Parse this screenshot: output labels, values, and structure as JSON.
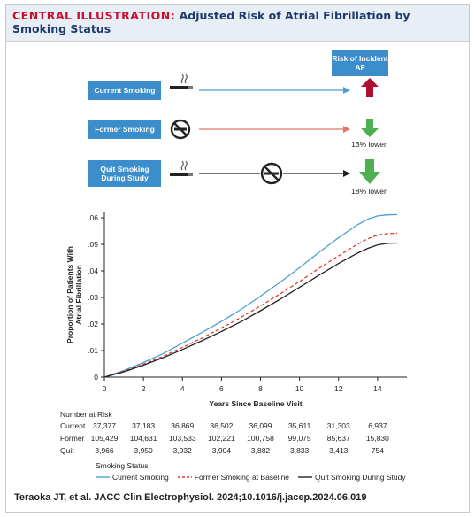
{
  "header": {
    "title_lead": "CENTRAL ILLUSTRATION:",
    "title_rest": "Adjusted Risk of Atrial Fibrillation by Smoking Status"
  },
  "schematic": {
    "risk_box_label": "Risk of Incident AF",
    "rows": [
      {
        "label": "Current Smoking",
        "outcome": "",
        "arrow": "up"
      },
      {
        "label": "Former Smoking",
        "outcome": "13% lower",
        "arrow": "down"
      },
      {
        "label": "Quit Smoking During Study",
        "outcome": "18% lower",
        "arrow": "down"
      }
    ],
    "icons": [
      "cigarette-icon",
      "no-smoking-icon",
      "cigarette-icon",
      "no-smoking-icon"
    ]
  },
  "chart_data": {
    "type": "line",
    "xlabel": "Years Since Baseline Visit",
    "ylabel": "Proportion of Patients With Atrial Fibrillation",
    "xlim": [
      0,
      15.5
    ],
    "ylim": [
      0,
      0.062
    ],
    "xticks": [
      0,
      2,
      4,
      6,
      8,
      10,
      12,
      14
    ],
    "xtick_labels": [
      "0",
      "2",
      "4",
      "6",
      "8",
      "10",
      "12",
      "14"
    ],
    "yticks": [
      0,
      0.01,
      0.02,
      0.03,
      0.04,
      0.05,
      0.06
    ],
    "ytick_labels": [
      "0",
      ".01",
      ".02",
      ".03",
      ".04",
      ".05",
      ".06"
    ],
    "grid": false,
    "series": [
      {
        "name": "Current Smoking",
        "color": "#4a9fd8",
        "dash": "solid",
        "x": [
          0,
          1,
          2,
          3,
          4,
          5,
          6,
          7,
          8,
          9,
          10,
          11,
          12,
          13,
          13.5,
          14,
          14.5,
          15
        ],
        "y": [
          0,
          0.0025,
          0.0055,
          0.0088,
          0.0128,
          0.0168,
          0.021,
          0.0255,
          0.0305,
          0.0357,
          0.0412,
          0.047,
          0.0525,
          0.0575,
          0.0595,
          0.0607,
          0.0611,
          0.0612
        ]
      },
      {
        "name": "Former Smoking at Baseline",
        "color": "#e03c31",
        "dash": "dashed",
        "x": [
          0,
          1,
          2,
          3,
          4,
          5,
          6,
          7,
          8,
          9,
          10,
          11,
          12,
          13,
          13.5,
          14,
          14.5,
          15
        ],
        "y": [
          0,
          0.0022,
          0.0049,
          0.0078,
          0.0112,
          0.0147,
          0.0185,
          0.0225,
          0.0268,
          0.0313,
          0.036,
          0.041,
          0.0457,
          0.0502,
          0.0521,
          0.0535,
          0.054,
          0.0542
        ]
      },
      {
        "name": "Quit Smoking During Study",
        "color": "#222222",
        "dash": "solid",
        "x": [
          0,
          1,
          2,
          3,
          4,
          5,
          6,
          7,
          8,
          9,
          10,
          11,
          12,
          13,
          13.5,
          14,
          14.5,
          15
        ],
        "y": [
          0,
          0.002,
          0.0045,
          0.0073,
          0.0104,
          0.0137,
          0.0172,
          0.0209,
          0.025,
          0.0293,
          0.0338,
          0.0384,
          0.0428,
          0.0468,
          0.0485,
          0.0498,
          0.0504,
          0.0505
        ]
      }
    ],
    "legend_title": "Smoking Status",
    "legend_placement": "bottom"
  },
  "risk_table": {
    "title": "Number at Risk",
    "times": [
      0,
      2,
      4,
      6,
      8,
      10,
      12,
      14
    ],
    "rows": [
      {
        "label": "Current",
        "values": [
          "37,377",
          "37,183",
          "36,869",
          "36,502",
          "36,099",
          "35,611",
          "31,303",
          "6,937"
        ]
      },
      {
        "label": "Former",
        "values": [
          "105,429",
          "104,631",
          "103,533",
          "102,221",
          "100,758",
          "99,075",
          "85,637",
          "15,830"
        ]
      },
      {
        "label": "Quit",
        "values": [
          "3,966",
          "3,950",
          "3,932",
          "3,904",
          "3,882",
          "3,833",
          "3,413",
          "754"
        ]
      }
    ]
  },
  "citation": "Teraoka JT, et al. JACC Clin Electrophysiol. 2024;10.1016/j.jacep.2024.06.019"
}
